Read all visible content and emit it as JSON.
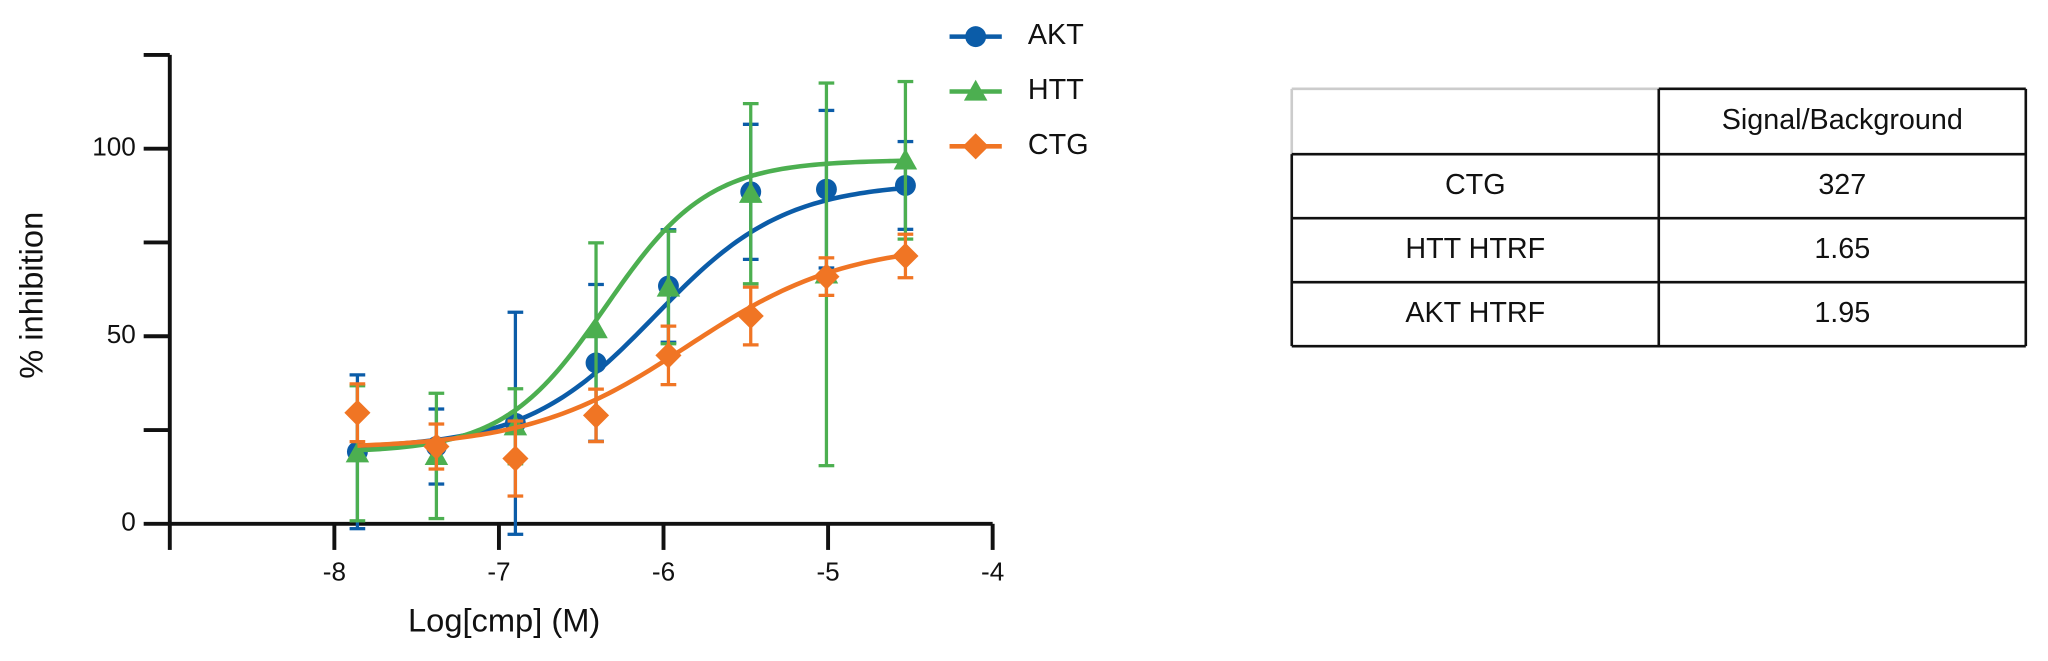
{
  "chart_data": {
    "type": "line",
    "xlabel": "Log[cmp] (M)",
    "ylabel": "% inhibition",
    "xlim": [
      -9,
      -4
    ],
    "xticks": [
      -8,
      -7,
      -6,
      -5,
      -4
    ],
    "ylim": [
      0,
      125
    ],
    "yticks": [
      0,
      50,
      100
    ],
    "yminorticks": [
      25,
      75,
      125
    ],
    "legend": "upper right",
    "x": [
      -7.86,
      -7.38,
      -6.9,
      -6.41,
      -5.97,
      -5.47,
      -5.01,
      -4.53
    ],
    "series": [
      {
        "name": "AKT",
        "color": "#0b5ca8",
        "marker": "circle",
        "values": [
          19.2,
          20.6,
          26.8,
          42.9,
          63.4,
          88.5,
          89.2,
          90.2
        ],
        "errors": [
          20.5,
          10,
          29.6,
          20.9,
          15,
          18,
          21,
          11.7
        ],
        "fit": {
          "bottom": 20,
          "top": 91,
          "logec50": -6.05,
          "hill": 1.1
        }
      },
      {
        "name": "HTT",
        "color": "#4caf50",
        "marker": "triangle",
        "values": [
          18.8,
          18.1,
          26,
          51.9,
          63,
          88,
          66.5,
          96.9
        ],
        "errors": [
          18,
          16.7,
          10,
          23,
          15,
          24,
          51,
          21
        ],
        "fit": {
          "bottom": 19,
          "top": 97,
          "logec50": -6.35,
          "hill": 1.4
        }
      },
      {
        "name": "CTG",
        "color": "#f07524",
        "marker": "diamond",
        "values": [
          29.6,
          20.6,
          17.4,
          28.9,
          44.9,
          55.4,
          65.9,
          71.4
        ],
        "errors": [
          7.7,
          6,
          10,
          7,
          7.8,
          7.7,
          5,
          5.8
        ],
        "fit": {
          "bottom": 20,
          "top": 75,
          "logec50": -5.85,
          "hill": 0.9
        }
      }
    ]
  },
  "table": {
    "header": [
      "Signal/Background"
    ],
    "rows": [
      [
        "CTG",
        "327"
      ],
      [
        "HTT HTRF",
        "1.65"
      ],
      [
        "AKT HTRF",
        "1.95"
      ]
    ]
  }
}
